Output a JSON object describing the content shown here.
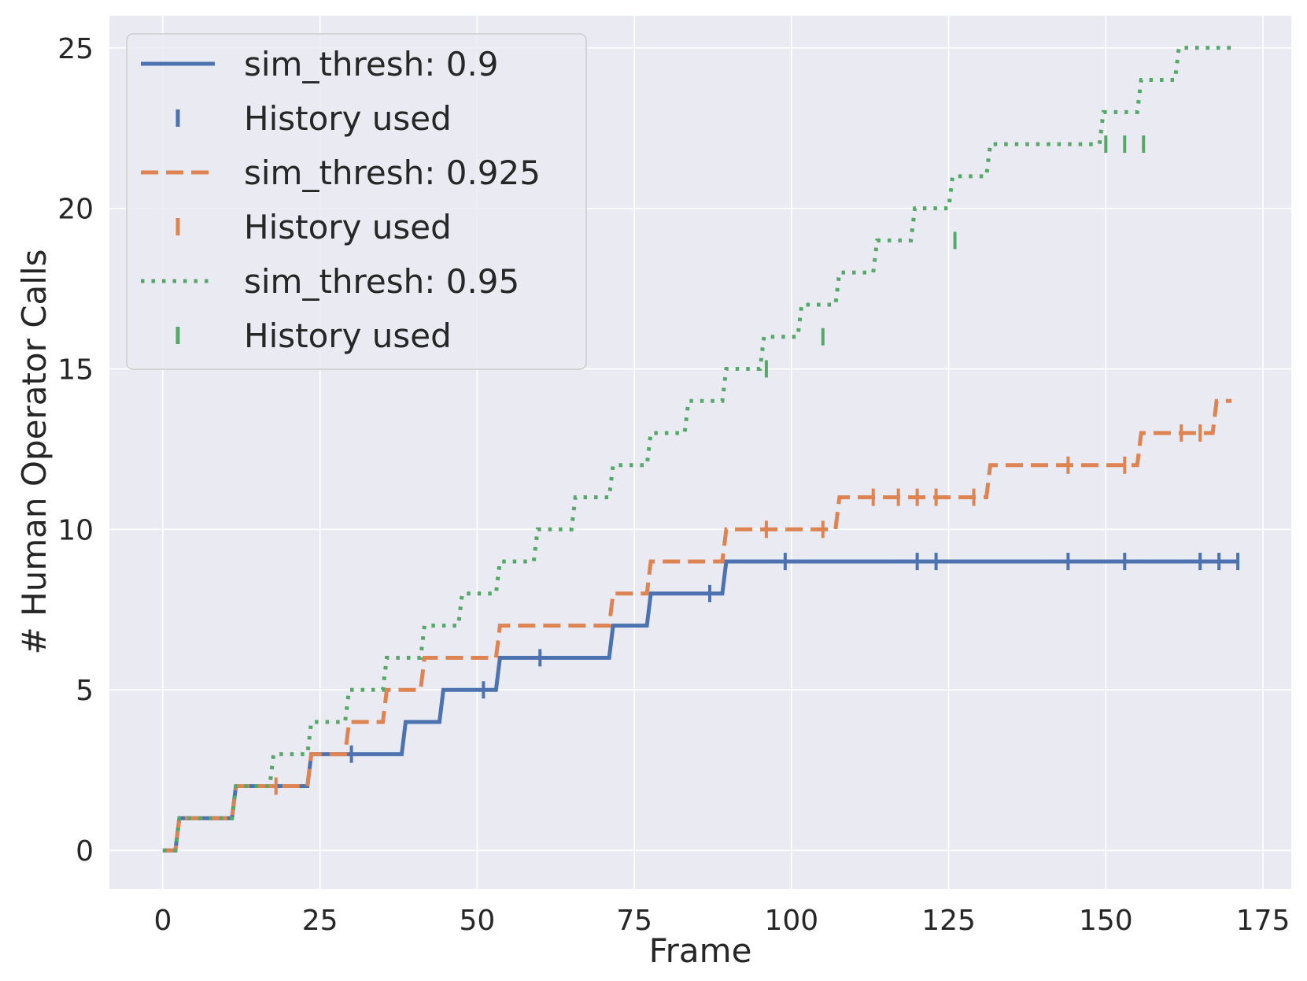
{
  "chart_data": {
    "type": "line",
    "title": "",
    "xlabel": "Frame",
    "ylabel": "# Human Operator Calls",
    "xlim": [
      -8.5,
      179.5
    ],
    "ylim": [
      -1.2,
      26.0
    ],
    "xticks": [
      0,
      25,
      50,
      75,
      100,
      125,
      150,
      175
    ],
    "yticks": [
      0,
      5,
      10,
      15,
      20,
      25
    ],
    "grid": true,
    "legend_position": "upper-left",
    "series": [
      {
        "name": "sim_thresh: 0.9",
        "color": "#4c72b0",
        "style": "solid",
        "marker_label": "History used",
        "steps": [
          [
            0,
            0
          ],
          [
            2,
            1
          ],
          [
            11,
            2
          ],
          [
            23,
            3
          ],
          [
            38,
            4
          ],
          [
            44,
            5
          ],
          [
            53,
            6
          ],
          [
            71,
            7
          ],
          [
            77,
            8
          ],
          [
            89,
            9
          ],
          [
            171,
            9
          ]
        ],
        "history_used": [
          [
            30,
            3
          ],
          [
            51,
            5
          ],
          [
            60,
            6
          ],
          [
            87,
            8
          ],
          [
            99,
            9
          ],
          [
            120,
            9
          ],
          [
            123,
            9
          ],
          [
            144,
            9
          ],
          [
            153,
            9
          ],
          [
            165,
            9
          ],
          [
            168,
            9
          ],
          [
            171,
            9
          ]
        ]
      },
      {
        "name": "sim_thresh: 0.925",
        "color": "#dd8452",
        "style": "dashed",
        "marker_label": "History used",
        "steps": [
          [
            0,
            0
          ],
          [
            2,
            1
          ],
          [
            11,
            2
          ],
          [
            23,
            3
          ],
          [
            29,
            4
          ],
          [
            35,
            5
          ],
          [
            41,
            6
          ],
          [
            53,
            7
          ],
          [
            71,
            8
          ],
          [
            77,
            9
          ],
          [
            89,
            10
          ],
          [
            107,
            11
          ],
          [
            131,
            12
          ],
          [
            155,
            13
          ],
          [
            167,
            14
          ],
          [
            170,
            14
          ]
        ],
        "history_used": [
          [
            18,
            2
          ],
          [
            96,
            10
          ],
          [
            105,
            10
          ],
          [
            113,
            11
          ],
          [
            117,
            11
          ],
          [
            120,
            11
          ],
          [
            123,
            11
          ],
          [
            129,
            11
          ],
          [
            144,
            12
          ],
          [
            153,
            12
          ],
          [
            162,
            13
          ],
          [
            165,
            13
          ]
        ]
      },
      {
        "name": "sim_thresh: 0.95",
        "color": "#55a868",
        "style": "dotted",
        "marker_label": "History used",
        "steps": [
          [
            0,
            0
          ],
          [
            2,
            1
          ],
          [
            11,
            2
          ],
          [
            17,
            3
          ],
          [
            23,
            4
          ],
          [
            29,
            5
          ],
          [
            35,
            6
          ],
          [
            41,
            7
          ],
          [
            47,
            8
          ],
          [
            53,
            9
          ],
          [
            59,
            10
          ],
          [
            65,
            11
          ],
          [
            71,
            12
          ],
          [
            77,
            13
          ],
          [
            83,
            14
          ],
          [
            89,
            15
          ],
          [
            95,
            16
          ],
          [
            101,
            17
          ],
          [
            107,
            18
          ],
          [
            113,
            19
          ],
          [
            119,
            20
          ],
          [
            125,
            21
          ],
          [
            131,
            22
          ],
          [
            149,
            23
          ],
          [
            155,
            24
          ],
          [
            161,
            25
          ],
          [
            171,
            25
          ]
        ],
        "history_used": [
          [
            96,
            15
          ],
          [
            105,
            16
          ],
          [
            126,
            19
          ],
          [
            150,
            22
          ],
          [
            153,
            22
          ],
          [
            156,
            22
          ]
        ]
      }
    ]
  }
}
